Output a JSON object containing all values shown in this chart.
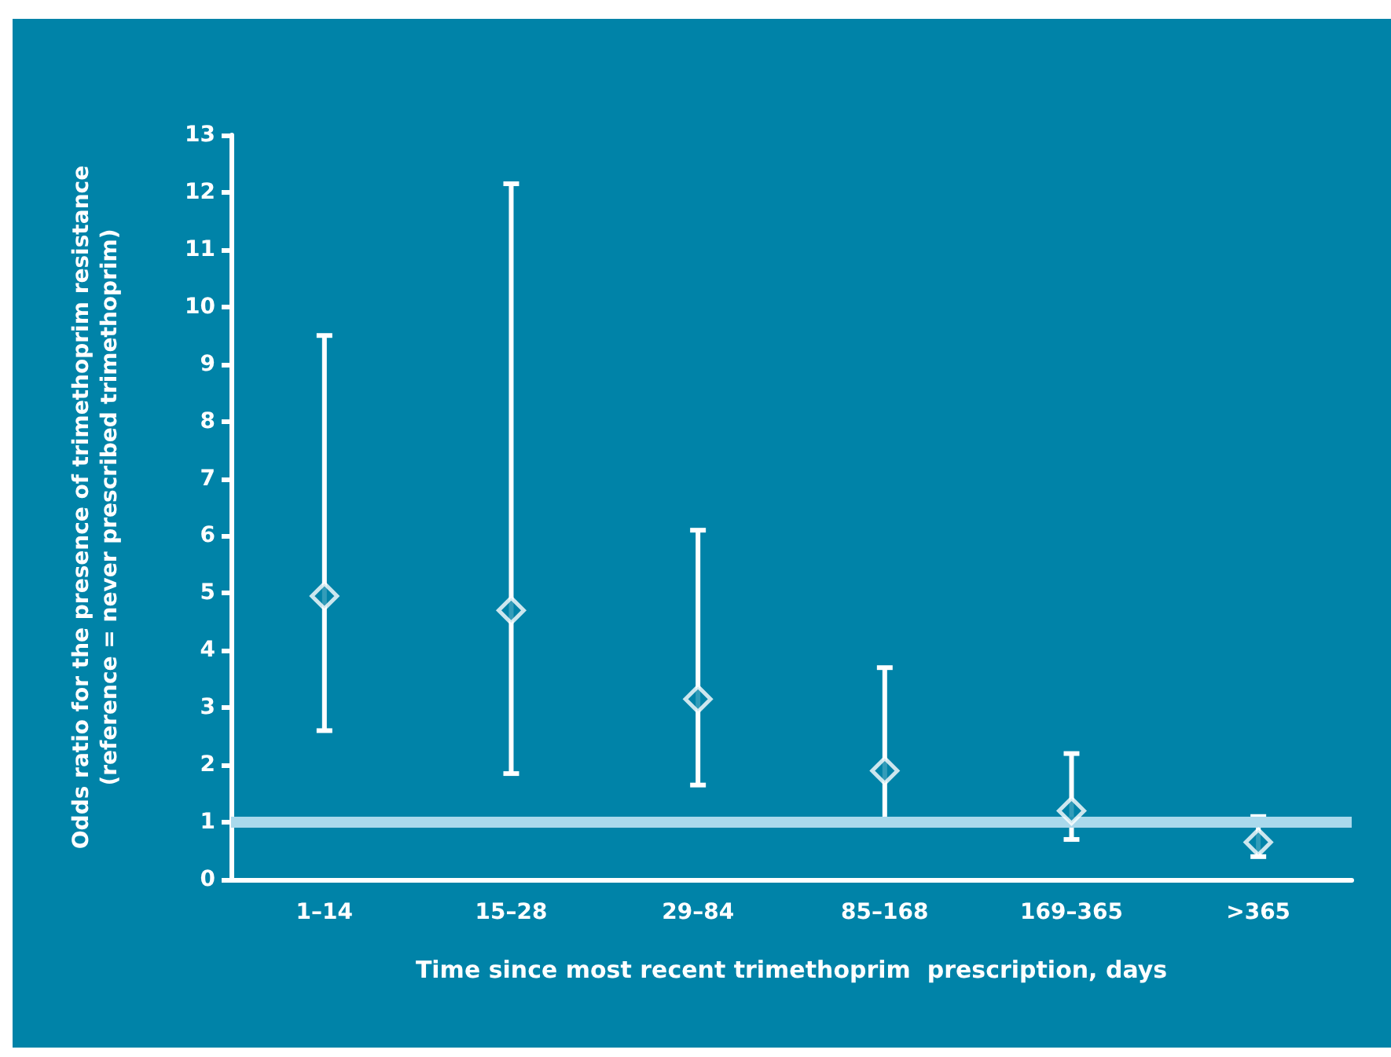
{
  "chart_data": {
    "type": "scatter",
    "xlabel": "Time since most recent trimethoprim  prescription, days",
    "ylabel": "Odds ratio for the presence of trimethoprim resistance\n(reference = never prescribed trimethoprim)",
    "categories": [
      "1–14",
      "15–28",
      "29–84",
      "85–168",
      "169–365",
      ">365"
    ],
    "values": [
      4.95,
      4.7,
      3.15,
      1.9,
      1.2,
      0.65
    ],
    "errors": [
      [
        2.6,
        9.5
      ],
      [
        1.85,
        12.15
      ],
      [
        1.65,
        6.1
      ],
      [
        0.95,
        3.7
      ],
      [
        0.7,
        2.2
      ],
      [
        0.4,
        1.1
      ]
    ],
    "color": "#ffffff",
    "marker": "diamond",
    "ylim": [
      0,
      13
    ],
    "yticks": [
      0,
      1,
      2,
      3,
      4,
      5,
      6,
      7,
      8,
      9,
      10,
      11,
      12,
      13
    ],
    "grid": false,
    "ref_lines": [
      {
        "axis": "y",
        "value": 1,
        "color": "#a9d9ec"
      }
    ]
  }
}
